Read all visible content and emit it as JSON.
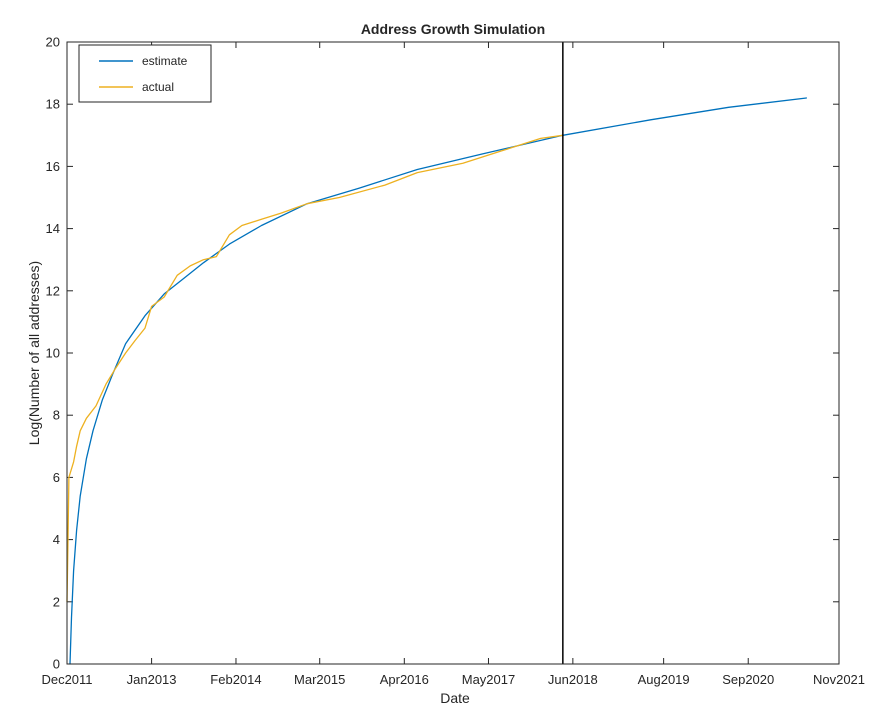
{
  "chart_data": {
    "type": "line",
    "title": "Address Growth Simulation",
    "xlabel": "Date",
    "ylabel": "Log(Number of all addresses)",
    "x_axis_type": "date",
    "xlim": [
      "2011-12-01",
      "2021-11-01"
    ],
    "ylim": [
      0,
      20
    ],
    "x_ticks": [
      {
        "date": "2011-12-01",
        "label": "Dec2011"
      },
      {
        "date": "2013-01-01",
        "label": "Jan2013"
      },
      {
        "date": "2014-02-01",
        "label": "Feb2014"
      },
      {
        "date": "2015-03-01",
        "label": "Mar2015"
      },
      {
        "date": "2016-04-01",
        "label": "Apr2016"
      },
      {
        "date": "2017-05-01",
        "label": "May2017"
      },
      {
        "date": "2018-06-01",
        "label": "Jun2018"
      },
      {
        "date": "2019-08-01",
        "label": "Aug2019"
      },
      {
        "date": "2020-09-01",
        "label": "Sep2020"
      },
      {
        "date": "2021-11-01",
        "label": "Nov2021"
      }
    ],
    "y_ticks": [
      {
        "value": 0,
        "label": "0"
      },
      {
        "value": 2,
        "label": "2"
      },
      {
        "value": 4,
        "label": "4"
      },
      {
        "value": 6,
        "label": "6"
      },
      {
        "value": 8,
        "label": "8"
      },
      {
        "value": 10,
        "label": "10"
      },
      {
        "value": 12,
        "label": "12"
      },
      {
        "value": 14,
        "label": "14"
      },
      {
        "value": 16,
        "label": "16"
      },
      {
        "value": 18,
        "label": "18"
      },
      {
        "value": 20,
        "label": "20"
      }
    ],
    "grid": false,
    "legend_position": "top-left",
    "vertical_line": {
      "x": "2018-04-15",
      "color": "#000000"
    },
    "series": [
      {
        "name": "estimate",
        "color": "#0072BD",
        "points": [
          {
            "x": "2011-12-15",
            "y": 0.0
          },
          {
            "x": "2011-12-22",
            "y": 1.5
          },
          {
            "x": "2012-01-01",
            "y": 3.0
          },
          {
            "x": "2012-01-15",
            "y": 4.3
          },
          {
            "x": "2012-02-01",
            "y": 5.4
          },
          {
            "x": "2012-03-01",
            "y": 6.6
          },
          {
            "x": "2012-04-01",
            "y": 7.5
          },
          {
            "x": "2012-05-15",
            "y": 8.5
          },
          {
            "x": "2012-07-01",
            "y": 9.3
          },
          {
            "x": "2012-09-01",
            "y": 10.3
          },
          {
            "x": "2012-12-01",
            "y": 11.2
          },
          {
            "x": "2013-03-01",
            "y": 11.9
          },
          {
            "x": "2013-06-01",
            "y": 12.4
          },
          {
            "x": "2013-09-01",
            "y": 12.9
          },
          {
            "x": "2014-01-01",
            "y": 13.5
          },
          {
            "x": "2014-06-01",
            "y": 14.1
          },
          {
            "x": "2015-01-01",
            "y": 14.8
          },
          {
            "x": "2015-09-01",
            "y": 15.3
          },
          {
            "x": "2016-06-01",
            "y": 15.9
          },
          {
            "x": "2017-04-01",
            "y": 16.4
          },
          {
            "x": "2018-04-15",
            "y": 17.0
          },
          {
            "x": "2019-06-01",
            "y": 17.5
          },
          {
            "x": "2020-06-01",
            "y": 17.9
          },
          {
            "x": "2021-06-01",
            "y": 18.2
          }
        ]
      },
      {
        "name": "actual",
        "color": "#EDB120",
        "points": [
          {
            "x": "2011-12-01",
            "y": 2.0
          },
          {
            "x": "2011-12-05",
            "y": 3.8
          },
          {
            "x": "2011-12-10",
            "y": 6.0
          },
          {
            "x": "2012-01-01",
            "y": 6.5
          },
          {
            "x": "2012-01-15",
            "y": 7.0
          },
          {
            "x": "2012-02-01",
            "y": 7.5
          },
          {
            "x": "2012-03-01",
            "y": 7.9
          },
          {
            "x": "2012-04-15",
            "y": 8.3
          },
          {
            "x": "2012-06-01",
            "y": 9.0
          },
          {
            "x": "2012-07-15",
            "y": 9.5
          },
          {
            "x": "2012-09-01",
            "y": 10.0
          },
          {
            "x": "2012-10-15",
            "y": 10.4
          },
          {
            "x": "2012-12-01",
            "y": 10.8
          },
          {
            "x": "2013-01-01",
            "y": 11.5
          },
          {
            "x": "2013-03-01",
            "y": 11.8
          },
          {
            "x": "2013-05-01",
            "y": 12.5
          },
          {
            "x": "2013-07-01",
            "y": 12.8
          },
          {
            "x": "2013-09-01",
            "y": 13.0
          },
          {
            "x": "2013-11-01",
            "y": 13.1
          },
          {
            "x": "2014-01-01",
            "y": 13.8
          },
          {
            "x": "2014-03-01",
            "y": 14.1
          },
          {
            "x": "2014-06-01",
            "y": 14.3
          },
          {
            "x": "2014-09-01",
            "y": 14.5
          },
          {
            "x": "2015-01-01",
            "y": 14.8
          },
          {
            "x": "2015-06-01",
            "y": 15.0
          },
          {
            "x": "2016-01-01",
            "y": 15.4
          },
          {
            "x": "2016-06-01",
            "y": 15.8
          },
          {
            "x": "2017-01-01",
            "y": 16.1
          },
          {
            "x": "2017-07-01",
            "y": 16.5
          },
          {
            "x": "2018-01-01",
            "y": 16.9
          },
          {
            "x": "2018-04-15",
            "y": 17.0
          }
        ]
      }
    ]
  }
}
